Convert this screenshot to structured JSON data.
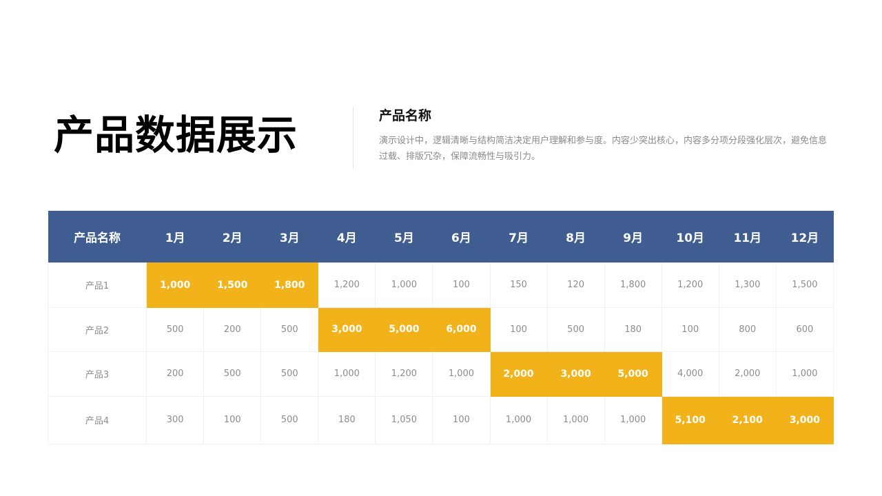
{
  "title": "产品数据展示",
  "subtitle": "产品名称",
  "description": "演示设计中，逻辑清晰与结构简洁决定用户理解和参与度。内容少突出核心，内容多分项分段强化层次，避免信息过载、排版冗杂，保障流畅性与吸引力。",
  "colors": {
    "header_bg": "#3f5d91",
    "highlight": "#f2b31a"
  },
  "table": {
    "headers": [
      "产品名称",
      "1月",
      "2月",
      "3月",
      "4月",
      "5月",
      "6月",
      "7月",
      "8月",
      "9月",
      "10月",
      "11月",
      "12月"
    ],
    "rows": [
      {
        "name": "产品1",
        "values": [
          "1,000",
          "1,500",
          "1,800",
          "1,200",
          "1,000",
          "100",
          "150",
          "120",
          "1,800",
          "1,200",
          "1,300",
          "1,500"
        ],
        "highlight": [
          1,
          1,
          1,
          0,
          0,
          0,
          0,
          0,
          0,
          0,
          0,
          0
        ]
      },
      {
        "name": "产品2",
        "values": [
          "500",
          "200",
          "500",
          "3,000",
          "5,000",
          "6,000",
          "100",
          "500",
          "180",
          "100",
          "800",
          "600"
        ],
        "highlight": [
          0,
          0,
          0,
          1,
          1,
          1,
          0,
          0,
          0,
          0,
          0,
          0
        ]
      },
      {
        "name": "产品3",
        "values": [
          "200",
          "500",
          "500",
          "1,000",
          "1,200",
          "1,000",
          "2,000",
          "3,000",
          "5,000",
          "4,000",
          "2,000",
          "1,000"
        ],
        "highlight": [
          0,
          0,
          0,
          0,
          0,
          0,
          1,
          1,
          1,
          0,
          0,
          0
        ]
      },
      {
        "name": "产品4",
        "values": [
          "300",
          "100",
          "500",
          "180",
          "1,050",
          "100",
          "1,000",
          "1,000",
          "1,000",
          "5,100",
          "2,100",
          "3,000"
        ],
        "highlight": [
          0,
          0,
          0,
          0,
          0,
          0,
          0,
          0,
          0,
          1,
          1,
          1
        ]
      }
    ]
  }
}
